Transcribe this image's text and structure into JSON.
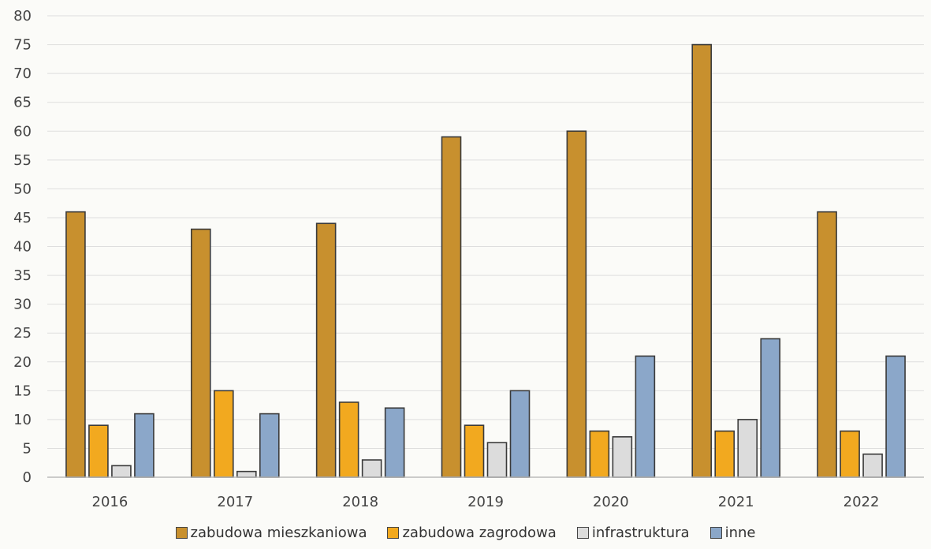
{
  "chart_data": {
    "type": "bar",
    "title": "",
    "xlabel": "",
    "ylabel": "",
    "ylim": [
      0,
      80
    ],
    "yticks": [
      0,
      5,
      10,
      15,
      20,
      25,
      30,
      35,
      40,
      45,
      50,
      55,
      60,
      65,
      70,
      75,
      80
    ],
    "grid": true,
    "legend_position": "bottom",
    "categories": [
      "2016",
      "2017",
      "2018",
      "2019",
      "2020",
      "2021",
      "2022"
    ],
    "series": [
      {
        "name": "zabudowa mieszkaniowa",
        "color": "#c8902e",
        "values": [
          46,
          43,
          44,
          59,
          60,
          75,
          46
        ]
      },
      {
        "name": "zabudowa zagrodowa",
        "color": "#f2a91f",
        "values": [
          9,
          15,
          13,
          9,
          8,
          8,
          8
        ]
      },
      {
        "name": "infrastruktura",
        "color": "#dcdcdc",
        "values": [
          2,
          1,
          3,
          6,
          7,
          10,
          4
        ]
      },
      {
        "name": "inne",
        "color": "#8ba7c9",
        "values": [
          11,
          11,
          12,
          15,
          21,
          24,
          21
        ]
      }
    ]
  }
}
